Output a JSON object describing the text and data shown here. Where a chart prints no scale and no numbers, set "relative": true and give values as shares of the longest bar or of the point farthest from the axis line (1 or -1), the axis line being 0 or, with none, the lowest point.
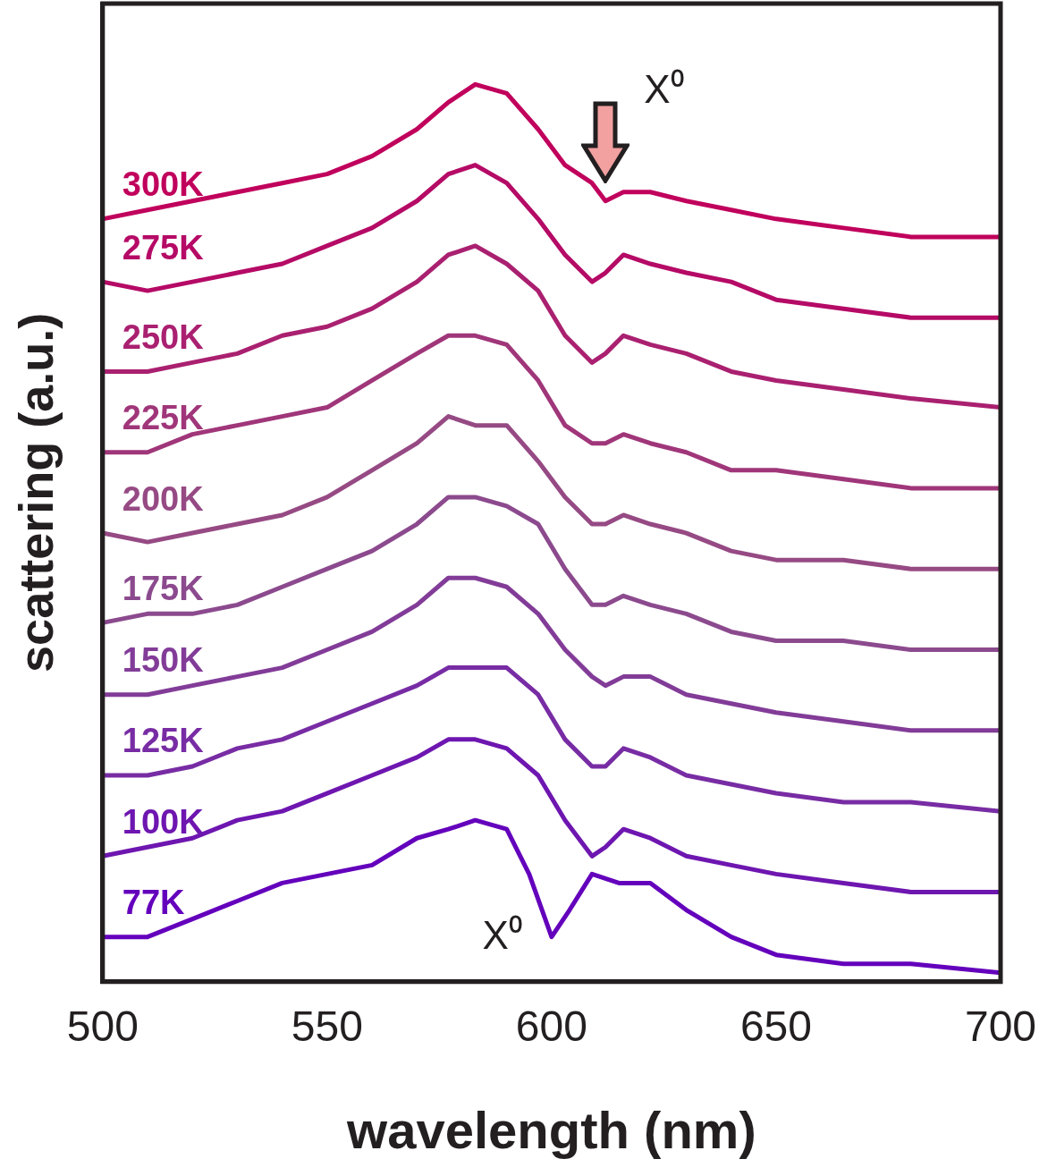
{
  "chart_data": {
    "type": "line",
    "xlabel": "wavelength (nm)",
    "ylabel": "scattering (a.u.)",
    "relative": true,
    "x": [
      500,
      510,
      520,
      530,
      540,
      550,
      560,
      570,
      577,
      583,
      590,
      597,
      603,
      609,
      612,
      616,
      622,
      630,
      640,
      650,
      665,
      680,
      700
    ],
    "xlim": [
      500,
      700
    ],
    "xticks": [
      500,
      550,
      600,
      650,
      700
    ],
    "grid": false,
    "legend": false,
    "marker": "none",
    "line_style": "solid",
    "annotations": [
      "X⁰",
      "X⁰"
    ],
    "series": [
      {
        "name": "300K",
        "color": "#c0005c",
        "values": [
          0.85,
          0.86,
          0.87,
          0.88,
          0.89,
          0.9,
          0.92,
          0.95,
          0.98,
          1.0,
          0.99,
          0.95,
          0.91,
          0.89,
          0.87,
          0.88,
          0.88,
          0.87,
          0.86,
          0.85,
          0.84,
          0.83,
          0.83
        ]
      },
      {
        "name": "275K",
        "color": "#b50a66",
        "values": [
          0.78,
          0.77,
          0.78,
          0.79,
          0.8,
          0.82,
          0.84,
          0.87,
          0.9,
          0.91,
          0.89,
          0.85,
          0.81,
          0.78,
          0.79,
          0.81,
          0.8,
          0.79,
          0.78,
          0.76,
          0.75,
          0.74,
          0.74
        ]
      },
      {
        "name": "250K",
        "color": "#aa2070",
        "values": [
          0.68,
          0.68,
          0.69,
          0.7,
          0.72,
          0.73,
          0.75,
          0.78,
          0.81,
          0.82,
          0.8,
          0.77,
          0.72,
          0.69,
          0.7,
          0.72,
          0.71,
          0.7,
          0.68,
          0.67,
          0.66,
          0.65,
          0.64
        ]
      },
      {
        "name": "225K",
        "color": "#a0367a",
        "values": [
          0.59,
          0.59,
          0.61,
          0.62,
          0.63,
          0.64,
          0.67,
          0.7,
          0.72,
          0.72,
          0.71,
          0.67,
          0.62,
          0.6,
          0.6,
          0.61,
          0.6,
          0.59,
          0.57,
          0.57,
          0.56,
          0.55,
          0.55
        ]
      },
      {
        "name": "200K",
        "color": "#964a84",
        "values": [
          0.5,
          0.49,
          0.5,
          0.51,
          0.52,
          0.54,
          0.57,
          0.6,
          0.63,
          0.62,
          0.62,
          0.58,
          0.54,
          0.51,
          0.51,
          0.52,
          0.51,
          0.5,
          0.48,
          0.47,
          0.47,
          0.46,
          0.46
        ]
      },
      {
        "name": "175K",
        "color": "#8c4a8e",
        "values": [
          0.4,
          0.41,
          0.41,
          0.42,
          0.44,
          0.46,
          0.48,
          0.51,
          0.54,
          0.54,
          0.53,
          0.51,
          0.46,
          0.42,
          0.42,
          0.43,
          0.42,
          0.41,
          0.39,
          0.38,
          0.38,
          0.37,
          0.37
        ]
      },
      {
        "name": "150K",
        "color": "#823c98",
        "values": [
          0.32,
          0.32,
          0.33,
          0.34,
          0.35,
          0.37,
          0.39,
          0.42,
          0.45,
          0.45,
          0.44,
          0.41,
          0.37,
          0.34,
          0.33,
          0.34,
          0.34,
          0.32,
          0.31,
          0.3,
          0.29,
          0.28,
          0.28
        ]
      },
      {
        "name": "125K",
        "color": "#782ca4",
        "values": [
          0.23,
          0.23,
          0.24,
          0.26,
          0.27,
          0.29,
          0.31,
          0.33,
          0.35,
          0.35,
          0.35,
          0.32,
          0.27,
          0.24,
          0.24,
          0.26,
          0.25,
          0.23,
          0.22,
          0.21,
          0.2,
          0.2,
          0.19
        ]
      },
      {
        "name": "100K",
        "color": "#6e16b0",
        "values": [
          0.14,
          0.15,
          0.16,
          0.18,
          0.19,
          0.21,
          0.23,
          0.25,
          0.27,
          0.27,
          0.26,
          0.23,
          0.18,
          0.14,
          0.15,
          0.17,
          0.16,
          0.14,
          0.13,
          0.12,
          0.11,
          0.1,
          0.1
        ]
      },
      {
        "name": "77K",
        "color": "#6400bc",
        "x": [
          500,
          510,
          520,
          530,
          540,
          550,
          560,
          570,
          577,
          583,
          590,
          595,
          600,
          604,
          609,
          615,
          622,
          630,
          640,
          650,
          665,
          680,
          700
        ],
        "values": [
          0.05,
          0.05,
          0.07,
          0.09,
          0.11,
          0.12,
          0.13,
          0.16,
          0.17,
          0.18,
          0.17,
          0.12,
          0.05,
          0.08,
          0.12,
          0.11,
          0.11,
          0.08,
          0.05,
          0.03,
          0.02,
          0.02,
          0.01
        ]
      }
    ]
  }
}
